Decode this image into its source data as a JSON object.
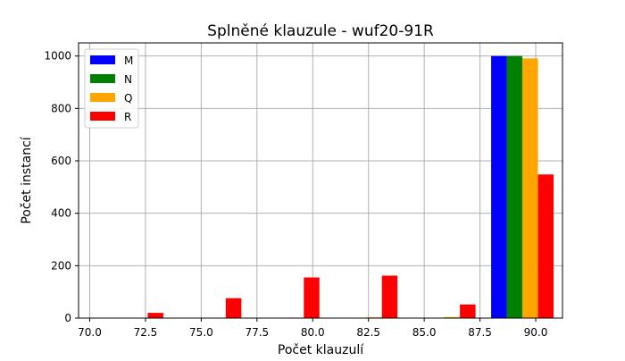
{
  "chart_data": {
    "type": "bar",
    "title": "Splněné klauzule - wuf20-91R",
    "xlabel": "Počet klauzulí",
    "ylabel": "Počet instancí",
    "xlim": [
      69.5,
      91.2
    ],
    "ylim": [
      0,
      1050
    ],
    "xticks": [
      70.0,
      72.5,
      75.0,
      77.5,
      80.0,
      82.5,
      85.0,
      87.5,
      90.0
    ],
    "xtick_labels": [
      "70.0",
      "72.5",
      "75.0",
      "77.5",
      "80.0",
      "82.5",
      "85.0",
      "87.5",
      "90.0"
    ],
    "yticks": [
      0,
      200,
      400,
      600,
      800,
      1000
    ],
    "ytick_labels": [
      "0",
      "200",
      "400",
      "600",
      "800",
      "1000"
    ],
    "grid": true,
    "legend_position": "top-left",
    "bin_width": 0.7,
    "series": [
      {
        "name": "M",
        "color": "#0000ff",
        "bins": [
          {
            "x": 88.0,
            "value": 1000
          }
        ]
      },
      {
        "name": "N",
        "color": "#008000",
        "bins": [
          {
            "x": 88.7,
            "value": 1000
          }
        ]
      },
      {
        "name": "Q",
        "color": "#ffa500",
        "bins": [
          {
            "x": 78.9,
            "value": 2
          },
          {
            "x": 82.4,
            "value": 3
          },
          {
            "x": 85.9,
            "value": 4
          },
          {
            "x": 89.4,
            "value": 991
          }
        ]
      },
      {
        "name": "R",
        "color": "#ff0000",
        "bins": [
          {
            "x": 72.6,
            "value": 20
          },
          {
            "x": 76.1,
            "value": 76
          },
          {
            "x": 79.6,
            "value": 155
          },
          {
            "x": 83.1,
            "value": 162
          },
          {
            "x": 86.6,
            "value": 52
          },
          {
            "x": 90.1,
            "value": 548
          }
        ]
      }
    ]
  }
}
